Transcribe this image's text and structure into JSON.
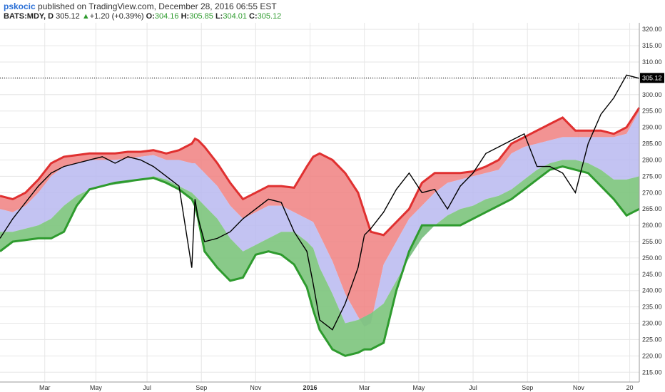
{
  "header": {
    "author": "pskocic",
    "published": "published on TradingView.com, December 28, 2016 06:55 EST",
    "symbol": "BATS:MDY, D",
    "last": "305.12",
    "change_arrow": "▲",
    "change": "+1.20 (+0.39%)",
    "open_label": "O:",
    "open": "304.16",
    "high_label": "H:",
    "high": "305.85",
    "low_label": "L:",
    "low": "304.01",
    "close_label": "C:",
    "close": "305.12"
  },
  "chart_data": {
    "type": "line",
    "y_ticks": [
      "215.00",
      "220.00",
      "225.00",
      "230.00",
      "235.00",
      "240.00",
      "245.00",
      "250.00",
      "255.00",
      "260.00",
      "265.00",
      "270.00",
      "275.00",
      "280.00",
      "285.00",
      "290.00",
      "295.00",
      "300.00",
      "305.00",
      "310.00",
      "315.00",
      "320.00"
    ],
    "ylim": [
      212,
      322
    ],
    "x_ticks": [
      {
        "label": "Mar",
        "t": 0.07
      },
      {
        "label": "May",
        "t": 0.15
      },
      {
        "label": "Jul",
        "t": 0.23
      },
      {
        "label": "Sep",
        "t": 0.315
      },
      {
        "label": "Nov",
        "t": 0.4
      },
      {
        "label": "2016",
        "t": 0.485,
        "bold": true
      },
      {
        "label": "Mar",
        "t": 0.57
      },
      {
        "label": "May",
        "t": 0.655
      },
      {
        "label": "Jul",
        "t": 0.74
      },
      {
        "label": "Sep",
        "t": 0.825
      },
      {
        "label": "Nov",
        "t": 0.905
      },
      {
        "label": "20",
        "t": 0.985
      }
    ],
    "last_price": 305.12,
    "last_price_label": "305.12",
    "colors": {
      "upper_band": "#e03030",
      "lower_band": "#2e9b2e",
      "upper_fill": "#f08080",
      "mid_fill": "#b8b8f0",
      "lower_fill": "#7cc47c",
      "price": "#000000"
    },
    "x": [
      0.0,
      0.02,
      0.04,
      0.06,
      0.08,
      0.1,
      0.12,
      0.14,
      0.16,
      0.18,
      0.2,
      0.22,
      0.24,
      0.26,
      0.28,
      0.3,
      0.305,
      0.31,
      0.32,
      0.34,
      0.36,
      0.38,
      0.4,
      0.42,
      0.44,
      0.46,
      0.48,
      0.49,
      0.5,
      0.52,
      0.54,
      0.56,
      0.57,
      0.58,
      0.6,
      0.62,
      0.64,
      0.66,
      0.68,
      0.7,
      0.72,
      0.74,
      0.76,
      0.78,
      0.8,
      0.82,
      0.84,
      0.86,
      0.88,
      0.9,
      0.92,
      0.94,
      0.96,
      0.98,
      1.0
    ],
    "upper_band": [
      269,
      268,
      270,
      274,
      279,
      281,
      281.5,
      282,
      282,
      282,
      282.5,
      282.5,
      283,
      282,
      283,
      285,
      286.5,
      286,
      284,
      279,
      273,
      268,
      270,
      272,
      272,
      271.5,
      278,
      281,
      282,
      280,
      276,
      270,
      264,
      258,
      257,
      261,
      265,
      273,
      276,
      276,
      276,
      276.5,
      278,
      280,
      285,
      287,
      289,
      291,
      293,
      289,
      289,
      289,
      288,
      290,
      296
    ],
    "upper_inner": [
      265,
      264,
      266,
      270,
      275,
      278,
      279,
      280,
      280,
      280,
      280.5,
      281,
      281.5,
      280,
      280,
      279,
      279,
      278,
      276,
      272,
      266,
      262,
      264,
      266,
      266,
      264,
      262,
      261,
      257,
      249,
      239,
      232,
      229,
      230,
      248,
      255,
      262,
      266,
      270,
      273,
      274,
      275,
      276,
      277,
      282,
      284,
      285,
      286,
      287,
      287,
      287,
      287,
      287,
      288,
      295
    ],
    "lower_inner": [
      258,
      258,
      259,
      260,
      262,
      266,
      269,
      271,
      272,
      272.5,
      273,
      274,
      275,
      274,
      272,
      270,
      269,
      268,
      266,
      262,
      256,
      252,
      254,
      256,
      258,
      258,
      255,
      253,
      247,
      239,
      230,
      231,
      232,
      233,
      236,
      243,
      250,
      256,
      260,
      263,
      265,
      266,
      268,
      269,
      271,
      274,
      277,
      279,
      280,
      280,
      279,
      277,
      274,
      274,
      275
    ],
    "lower_band": [
      252,
      255,
      255.5,
      256,
      256,
      258,
      266,
      271,
      272,
      273,
      273.5,
      274,
      274.5,
      273,
      271,
      268,
      266,
      262,
      252,
      247,
      243,
      244,
      251,
      252,
      251,
      248,
      241,
      234,
      228,
      222,
      220,
      221,
      222,
      222,
      224,
      240,
      252,
      260,
      260,
      260,
      260,
      262,
      264,
      266,
      268,
      271,
      274,
      277,
      278,
      277,
      276,
      272,
      268,
      263,
      265
    ],
    "price": [
      256,
      262,
      267,
      272,
      276,
      278,
      279,
      280,
      281,
      279,
      281,
      280,
      278,
      275,
      272,
      247,
      268,
      262,
      255,
      256,
      258,
      262,
      265,
      268,
      267,
      258,
      252,
      242,
      231,
      228,
      236,
      247,
      257,
      259,
      264,
      271,
      276,
      270,
      271,
      265,
      272,
      276,
      282,
      284,
      286,
      288,
      278,
      278,
      276,
      270,
      285,
      294,
      299,
      306,
      305
    ]
  }
}
